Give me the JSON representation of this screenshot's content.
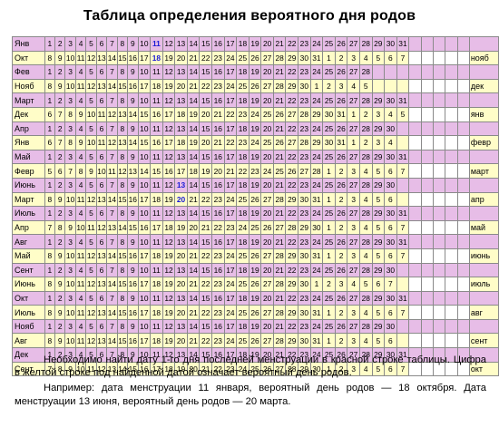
{
  "title": "Таблица определения вероятного дня родов",
  "rows": [
    {
      "color": "pink",
      "label": "Янв",
      "cells": [
        "1",
        "2",
        "3",
        "4",
        "5",
        "6",
        "7",
        "8",
        "9",
        "10",
        "11",
        "12",
        "13",
        "14",
        "15",
        "16",
        "17",
        "18",
        "19",
        "20",
        "21",
        "22",
        "23",
        "24",
        "25",
        "26",
        "27",
        "28",
        "29",
        "30",
        "31",
        "",
        "",
        "",
        "",
        ""
      ],
      "suffix": "",
      "highlight": 10
    },
    {
      "color": "yellow",
      "label": "Окт",
      "cells": [
        "8",
        "9",
        "10",
        "11",
        "12",
        "13",
        "14",
        "15",
        "16",
        "17",
        "18",
        "19",
        "20",
        "21",
        "22",
        "23",
        "24",
        "25",
        "26",
        "27",
        "28",
        "29",
        "30",
        "31",
        "1",
        "2",
        "3",
        "4",
        "5",
        "6",
        "7",
        "",
        "",
        "",
        "",
        ""
      ],
      "suffix": "нояб",
      "highlight": 10
    },
    {
      "color": "pink",
      "label": "Фев",
      "cells": [
        "1",
        "2",
        "3",
        "4",
        "5",
        "6",
        "7",
        "8",
        "9",
        "10",
        "11",
        "12",
        "13",
        "14",
        "15",
        "16",
        "17",
        "18",
        "19",
        "20",
        "21",
        "22",
        "23",
        "24",
        "25",
        "26",
        "27",
        "28",
        "",
        "",
        "",
        "",
        "",
        "",
        "",
        ""
      ],
      "suffix": ""
    },
    {
      "color": "yellow",
      "label": "Нояб",
      "cells": [
        "8",
        "9",
        "10",
        "11",
        "12",
        "13",
        "14",
        "15",
        "16",
        "17",
        "18",
        "19",
        "20",
        "21",
        "22",
        "23",
        "24",
        "25",
        "26",
        "27",
        "28",
        "29",
        "30",
        "1",
        "2",
        "3",
        "4",
        "5",
        "",
        "",
        "",
        "",
        "",
        "",
        "",
        ""
      ],
      "suffix": "дек"
    },
    {
      "color": "pink",
      "label": "Март",
      "cells": [
        "1",
        "2",
        "3",
        "4",
        "5",
        "6",
        "7",
        "8",
        "9",
        "10",
        "11",
        "12",
        "13",
        "14",
        "15",
        "16",
        "17",
        "18",
        "19",
        "20",
        "21",
        "22",
        "23",
        "24",
        "25",
        "26",
        "27",
        "28",
        "29",
        "30",
        "31",
        "",
        "",
        "",
        "",
        ""
      ],
      "suffix": ""
    },
    {
      "color": "yellow",
      "label": "Дек",
      "cells": [
        "6",
        "7",
        "8",
        "9",
        "10",
        "11",
        "12",
        "13",
        "14",
        "15",
        "16",
        "17",
        "18",
        "19",
        "20",
        "21",
        "22",
        "23",
        "24",
        "25",
        "26",
        "27",
        "28",
        "29",
        "30",
        "31",
        "1",
        "2",
        "3",
        "4",
        "5",
        "",
        "",
        "",
        "",
        ""
      ],
      "suffix": "янв"
    },
    {
      "color": "pink",
      "label": "Апр",
      "cells": [
        "1",
        "2",
        "3",
        "4",
        "5",
        "6",
        "7",
        "8",
        "9",
        "10",
        "11",
        "12",
        "13",
        "14",
        "15",
        "16",
        "17",
        "18",
        "19",
        "20",
        "21",
        "22",
        "23",
        "24",
        "25",
        "26",
        "27",
        "28",
        "29",
        "30",
        "",
        "",
        "",
        "",
        "",
        ""
      ],
      "suffix": ""
    },
    {
      "color": "yellow",
      "label": "Янв",
      "cells": [
        "6",
        "7",
        "8",
        "9",
        "10",
        "11",
        "12",
        "13",
        "14",
        "15",
        "16",
        "17",
        "18",
        "19",
        "20",
        "21",
        "22",
        "23",
        "24",
        "25",
        "26",
        "27",
        "28",
        "29",
        "30",
        "31",
        "1",
        "2",
        "3",
        "4",
        "",
        "",
        "",
        "",
        "",
        ""
      ],
      "suffix": "февр"
    },
    {
      "color": "pink",
      "label": "Май",
      "cells": [
        "1",
        "2",
        "3",
        "4",
        "5",
        "6",
        "7",
        "8",
        "9",
        "10",
        "11",
        "12",
        "13",
        "14",
        "15",
        "16",
        "17",
        "18",
        "19",
        "20",
        "21",
        "22",
        "23",
        "24",
        "25",
        "26",
        "27",
        "28",
        "29",
        "30",
        "31",
        "",
        "",
        "",
        "",
        ""
      ],
      "suffix": ""
    },
    {
      "color": "yellow",
      "label": "Февр",
      "cells": [
        "5",
        "6",
        "7",
        "8",
        "9",
        "10",
        "11",
        "12",
        "13",
        "14",
        "15",
        "16",
        "17",
        "18",
        "19",
        "20",
        "21",
        "22",
        "23",
        "24",
        "25",
        "26",
        "27",
        "28",
        "1",
        "2",
        "3",
        "4",
        "5",
        "6",
        "7",
        "",
        "",
        "",
        "",
        ""
      ],
      "suffix": "март"
    },
    {
      "color": "pink",
      "label": "Июнь",
      "cells": [
        "1",
        "2",
        "3",
        "4",
        "5",
        "6",
        "7",
        "8",
        "9",
        "10",
        "11",
        "12",
        "13",
        "14",
        "15",
        "16",
        "17",
        "18",
        "19",
        "20",
        "21",
        "22",
        "23",
        "24",
        "25",
        "26",
        "27",
        "28",
        "29",
        "30",
        "",
        "",
        "",
        "",
        "",
        ""
      ],
      "suffix": "",
      "highlight": 12
    },
    {
      "color": "yellow",
      "label": "Март",
      "cells": [
        "8",
        "9",
        "10",
        "11",
        "12",
        "13",
        "14",
        "15",
        "16",
        "17",
        "18",
        "19",
        "20",
        "21",
        "22",
        "23",
        "24",
        "25",
        "26",
        "27",
        "28",
        "29",
        "30",
        "31",
        "1",
        "2",
        "3",
        "4",
        "5",
        "6",
        "",
        "",
        "",
        "",
        "",
        ""
      ],
      "suffix": "апр",
      "highlight": 12
    },
    {
      "color": "pink",
      "label": "Июль",
      "cells": [
        "1",
        "2",
        "3",
        "4",
        "5",
        "6",
        "7",
        "8",
        "9",
        "10",
        "11",
        "12",
        "13",
        "14",
        "15",
        "16",
        "17",
        "18",
        "19",
        "20",
        "21",
        "22",
        "23",
        "24",
        "25",
        "26",
        "27",
        "28",
        "29",
        "30",
        "31",
        "",
        "",
        "",
        "",
        ""
      ],
      "suffix": ""
    },
    {
      "color": "yellow",
      "label": "Апр",
      "cells": [
        "7",
        "8",
        "9",
        "10",
        "11",
        "12",
        "13",
        "14",
        "15",
        "16",
        "17",
        "18",
        "19",
        "20",
        "21",
        "22",
        "23",
        "24",
        "25",
        "26",
        "27",
        "28",
        "29",
        "30",
        "1",
        "2",
        "3",
        "4",
        "5",
        "6",
        "7",
        "",
        "",
        "",
        "",
        ""
      ],
      "suffix": "май"
    },
    {
      "color": "pink",
      "label": "Авг",
      "cells": [
        "1",
        "2",
        "3",
        "4",
        "5",
        "6",
        "7",
        "8",
        "9",
        "10",
        "11",
        "12",
        "13",
        "14",
        "15",
        "16",
        "17",
        "18",
        "19",
        "20",
        "21",
        "22",
        "23",
        "24",
        "25",
        "26",
        "27",
        "28",
        "29",
        "30",
        "31",
        "",
        "",
        "",
        "",
        ""
      ],
      "suffix": ""
    },
    {
      "color": "yellow",
      "label": "Май",
      "cells": [
        "8",
        "9",
        "10",
        "11",
        "12",
        "13",
        "14",
        "15",
        "16",
        "17",
        "18",
        "19",
        "20",
        "21",
        "22",
        "23",
        "24",
        "25",
        "26",
        "27",
        "28",
        "29",
        "30",
        "31",
        "1",
        "2",
        "3",
        "4",
        "5",
        "6",
        "7",
        "",
        "",
        "",
        "",
        ""
      ],
      "suffix": "июнь"
    },
    {
      "color": "pink",
      "label": "Сент",
      "cells": [
        "1",
        "2",
        "3",
        "4",
        "5",
        "6",
        "7",
        "8",
        "9",
        "10",
        "11",
        "12",
        "13",
        "14",
        "15",
        "16",
        "17",
        "18",
        "19",
        "20",
        "21",
        "22",
        "23",
        "24",
        "25",
        "26",
        "27",
        "28",
        "29",
        "30",
        "",
        "",
        "",
        "",
        "",
        ""
      ],
      "suffix": ""
    },
    {
      "color": "yellow",
      "label": "Июнь",
      "cells": [
        "8",
        "9",
        "10",
        "11",
        "12",
        "13",
        "14",
        "15",
        "16",
        "17",
        "18",
        "19",
        "20",
        "21",
        "22",
        "23",
        "24",
        "25",
        "26",
        "27",
        "28",
        "29",
        "30",
        "1",
        "2",
        "3",
        "4",
        "5",
        "6",
        "7",
        "",
        "",
        "",
        "",
        "",
        ""
      ],
      "suffix": "июль"
    },
    {
      "color": "pink",
      "label": "Окт",
      "cells": [
        "1",
        "2",
        "3",
        "4",
        "5",
        "6",
        "7",
        "8",
        "9",
        "10",
        "11",
        "12",
        "13",
        "14",
        "15",
        "16",
        "17",
        "18",
        "19",
        "20",
        "21",
        "22",
        "23",
        "24",
        "25",
        "26",
        "27",
        "28",
        "29",
        "30",
        "31",
        "",
        "",
        "",
        "",
        ""
      ],
      "suffix": ""
    },
    {
      "color": "yellow",
      "label": "Июль",
      "cells": [
        "8",
        "9",
        "10",
        "11",
        "12",
        "13",
        "14",
        "15",
        "16",
        "17",
        "18",
        "19",
        "20",
        "21",
        "22",
        "23",
        "24",
        "25",
        "26",
        "27",
        "28",
        "29",
        "30",
        "31",
        "1",
        "2",
        "3",
        "4",
        "5",
        "6",
        "7",
        "",
        "",
        "",
        "",
        ""
      ],
      "suffix": "авг"
    },
    {
      "color": "pink",
      "label": "Нояб",
      "cells": [
        "1",
        "2",
        "3",
        "4",
        "5",
        "6",
        "7",
        "8",
        "9",
        "10",
        "11",
        "12",
        "13",
        "14",
        "15",
        "16",
        "17",
        "18",
        "19",
        "20",
        "21",
        "22",
        "23",
        "24",
        "25",
        "26",
        "27",
        "28",
        "29",
        "30",
        "",
        "",
        "",
        "",
        "",
        ""
      ],
      "suffix": ""
    },
    {
      "color": "yellow",
      "label": "Авг",
      "cells": [
        "8",
        "9",
        "10",
        "11",
        "12",
        "13",
        "14",
        "15",
        "16",
        "17",
        "18",
        "19",
        "20",
        "21",
        "22",
        "23",
        "24",
        "25",
        "26",
        "27",
        "28",
        "29",
        "30",
        "31",
        "1",
        "2",
        "3",
        "4",
        "5",
        "6",
        "",
        "",
        "",
        "",
        "",
        ""
      ],
      "suffix": "сент"
    },
    {
      "color": "pink",
      "label": "Дек",
      "cells": [
        "1",
        "2",
        "3",
        "4",
        "5",
        "6",
        "7",
        "8",
        "9",
        "10",
        "11",
        "12",
        "13",
        "14",
        "15",
        "16",
        "17",
        "18",
        "19",
        "20",
        "21",
        "22",
        "23",
        "24",
        "25",
        "26",
        "27",
        "28",
        "29",
        "30",
        "31",
        "",
        "",
        "",
        "",
        ""
      ],
      "suffix": ""
    },
    {
      "color": "yellow",
      "label": "Сент",
      "cells": [
        "7",
        "8",
        "9",
        "10",
        "11",
        "12",
        "13",
        "14",
        "15",
        "16",
        "17",
        "18",
        "19",
        "20",
        "21",
        "22",
        "23",
        "24",
        "25",
        "26",
        "27",
        "28",
        "29",
        "30",
        "1",
        "2",
        "3",
        "4",
        "5",
        "6",
        "7",
        "",
        "",
        "",
        "",
        ""
      ],
      "suffix": "окт"
    }
  ],
  "paragraphs": [
    "Необходимо найти дату 1-го дня последней менструации в красной строке таблицы. Цифра в желтой строке под найденной датой означает вероятный день родов.",
    "Например: дата менструации 11 января, вероятный день родов — 18 октября. Дата менструации 13 июня, вероятный день родов — 20 марта."
  ],
  "colors": {
    "pink": "#e7bde7",
    "yellow": "#fffdc8",
    "highlight": "#1a1ad6"
  }
}
